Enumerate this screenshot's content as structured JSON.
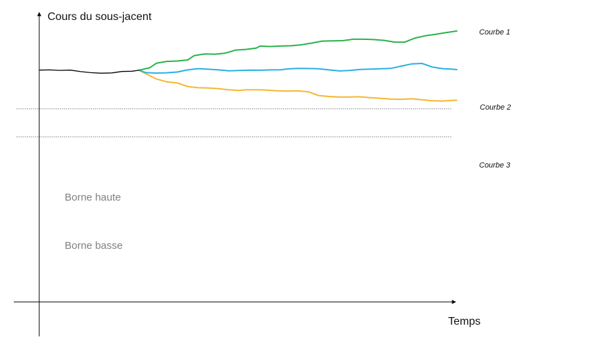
{
  "chart_data": {
    "type": "line",
    "title": "",
    "ylabel": "Cours du sous-jacent",
    "xlabel": "Temps",
    "xlim": [
      0,
      100
    ],
    "ylim": [
      0,
      100
    ],
    "grid": false,
    "legend": "direct labels at right end of each series",
    "history": {
      "color": "#000000",
      "points": [
        [
          0,
          72.5
        ],
        [
          2.5,
          72.6
        ],
        [
          4.9,
          72.3
        ],
        [
          7.4,
          72.5
        ],
        [
          9.9,
          71.4
        ],
        [
          12.3,
          70.7
        ],
        [
          14.8,
          70.3
        ],
        [
          17.3,
          70.5
        ],
        [
          19.7,
          71.5
        ],
        [
          22.2,
          71.7
        ],
        [
          23.8,
          72.4
        ]
      ]
    },
    "series": [
      {
        "name": "Courbe 1",
        "color": "#2ab24b",
        "points": [
          [
            23.8,
            72.4
          ],
          [
            26.3,
            74.1
          ],
          [
            28.0,
            77.4
          ],
          [
            30.4,
            78.6
          ],
          [
            32.9,
            78.9
          ],
          [
            35.4,
            79.6
          ],
          [
            37.0,
            82.7
          ],
          [
            39.5,
            83.9
          ],
          [
            42.0,
            83.7
          ],
          [
            44.4,
            84.4
          ],
          [
            46.9,
            86.6
          ],
          [
            49.4,
            87.1
          ],
          [
            51.8,
            88.0
          ],
          [
            52.7,
            89.4
          ],
          [
            55.1,
            89.1
          ],
          [
            57.6,
            89.4
          ],
          [
            60.1,
            89.6
          ],
          [
            62.5,
            90.3
          ],
          [
            65.0,
            91.5
          ],
          [
            67.5,
            92.9
          ],
          [
            70.0,
            93.1
          ],
          [
            72.4,
            93.2
          ],
          [
            74.9,
            94.2
          ],
          [
            77.4,
            94.2
          ],
          [
            79.8,
            94.0
          ],
          [
            82.3,
            93.4
          ],
          [
            84.8,
            92.2
          ],
          [
            87.2,
            92.2
          ],
          [
            89.7,
            95.1
          ],
          [
            92.2,
            96.7
          ],
          [
            94.6,
            97.7
          ],
          [
            97.1,
            98.9
          ],
          [
            99.6,
            100.0
          ]
        ]
      },
      {
        "name": "Courbe 2",
        "color": "#29b0e4",
        "points": [
          [
            23.8,
            72.4
          ],
          [
            25.5,
            70.7
          ],
          [
            27.9,
            70.4
          ],
          [
            30.4,
            70.6
          ],
          [
            32.9,
            71.1
          ],
          [
            35.4,
            72.6
          ],
          [
            37.8,
            73.5
          ],
          [
            40.3,
            73.1
          ],
          [
            42.8,
            72.6
          ],
          [
            45.2,
            72.0
          ],
          [
            47.7,
            72.2
          ],
          [
            50.2,
            72.5
          ],
          [
            52.6,
            72.4
          ],
          [
            55.1,
            72.6
          ],
          [
            57.6,
            72.7
          ],
          [
            59.2,
            73.3
          ],
          [
            61.7,
            73.7
          ],
          [
            64.2,
            73.6
          ],
          [
            66.6,
            73.4
          ],
          [
            69.1,
            72.6
          ],
          [
            71.6,
            71.9
          ],
          [
            74.0,
            72.2
          ],
          [
            76.5,
            72.9
          ],
          [
            79.0,
            73.2
          ],
          [
            81.4,
            73.4
          ],
          [
            83.9,
            73.7
          ],
          [
            86.4,
            75.3
          ],
          [
            88.8,
            76.8
          ],
          [
            91.3,
            77.2
          ],
          [
            93.8,
            74.6
          ],
          [
            96.2,
            73.5
          ],
          [
            98.7,
            73.1
          ],
          [
            99.6,
            72.8
          ]
        ]
      },
      {
        "name": "Courbe 3",
        "color": "#f5b731",
        "points": [
          [
            23.8,
            72.4
          ],
          [
            25.5,
            69.8
          ],
          [
            27.9,
            66.3
          ],
          [
            30.4,
            64.2
          ],
          [
            32.9,
            63.5
          ],
          [
            35.4,
            60.9
          ],
          [
            37.8,
            60.1
          ],
          [
            40.3,
            59.9
          ],
          [
            42.8,
            59.4
          ],
          [
            45.2,
            58.6
          ],
          [
            47.7,
            58.1
          ],
          [
            49.4,
            58.6
          ],
          [
            51.8,
            58.6
          ],
          [
            54.3,
            58.4
          ],
          [
            56.8,
            57.9
          ],
          [
            59.2,
            57.7
          ],
          [
            61.7,
            57.9
          ],
          [
            64.2,
            57.2
          ],
          [
            66.6,
            54.6
          ],
          [
            69.1,
            53.9
          ],
          [
            71.6,
            53.5
          ],
          [
            74.0,
            53.5
          ],
          [
            76.5,
            53.7
          ],
          [
            79.0,
            53.0
          ],
          [
            81.4,
            52.6
          ],
          [
            83.9,
            52.1
          ],
          [
            86.4,
            51.9
          ],
          [
            88.8,
            52.3
          ],
          [
            91.3,
            51.6
          ],
          [
            93.8,
            50.9
          ],
          [
            96.2,
            50.7
          ],
          [
            98.7,
            51.2
          ],
          [
            99.6,
            51.2
          ]
        ]
      }
    ],
    "reference_lines": [
      {
        "name": "Borne haute",
        "y": 45.2,
        "label": "Borne haute"
      },
      {
        "name": "Borne basse",
        "y": 25.4,
        "label": "Borne basse"
      }
    ]
  }
}
